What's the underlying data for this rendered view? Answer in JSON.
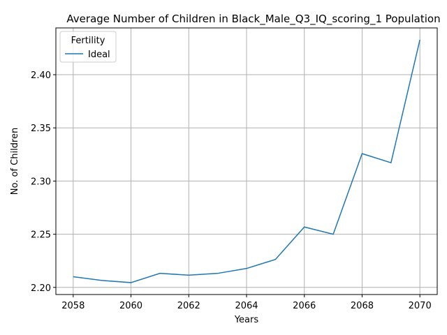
{
  "chart_data": {
    "type": "line",
    "title": "Average Number of Children in Black_Male_Q3_IQ_scoring_1 Population",
    "xlabel": "Years",
    "ylabel": "No. of Children",
    "x": [
      2058,
      2059,
      2060,
      2061,
      2062,
      2063,
      2064,
      2065,
      2066,
      2067,
      2068,
      2069,
      2070
    ],
    "series": [
      {
        "name": "Ideal",
        "color": "#1f77b4",
        "values": [
          2.21,
          2.2065,
          2.2045,
          2.2132,
          2.2115,
          2.2132,
          2.2178,
          2.2263,
          2.2568,
          2.25,
          2.3258,
          2.3172,
          2.4328
        ]
      }
    ],
    "xticks": [
      2058,
      2060,
      2062,
      2064,
      2066,
      2068,
      2070
    ],
    "xtick_labels": [
      "2058",
      "2060",
      "2062",
      "2064",
      "2066",
      "2068",
      "2070"
    ],
    "yticks": [
      2.2,
      2.25,
      2.3,
      2.35,
      2.4
    ],
    "ytick_labels": [
      "2.20",
      "2.25",
      "2.30",
      "2.35",
      "2.40"
    ],
    "xlim": [
      2057.4,
      2070.6
    ],
    "ylim": [
      2.1933,
      2.444
    ],
    "grid": true,
    "legend": {
      "title": "Fertility",
      "placement": "top-left"
    }
  }
}
